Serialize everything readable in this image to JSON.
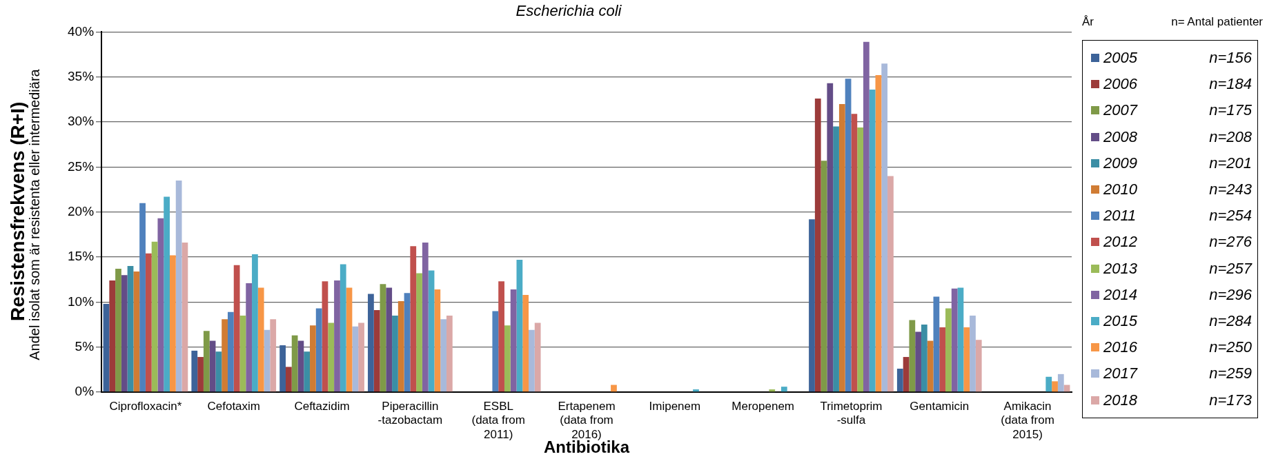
{
  "chart_data": {
    "type": "bar",
    "title": "Escherichia coli",
    "xlabel": "Antibiotika",
    "ylabel": "Resistensfrekvens (R+I)",
    "legend_title": "År",
    "legend": "right",
    "annotations": [
      "Andel isolat som är resistenta eller intermediära",
      "n= Antal patienter",
      "n=156",
      "n=184",
      "n=175",
      "n=208",
      "n=201",
      "n=243",
      "n=254",
      "n=276",
      "n=257",
      "n=296",
      "n=284",
      "n=250",
      "n=259",
      "n=173"
    ],
    "categories": [
      "Ciprofloxacin*",
      "Cefotaxim",
      "Ceftazidim",
      "Piperacillin\n-tazobactam",
      "ESBL\n(data from\n2011)",
      "Ertapenem\n(data from\n2016)",
      "Imipenem",
      "Meropenem",
      "Trimetoprim\n-sulfa",
      "Gentamicin",
      "Amikacin\n(data from\n2015)"
    ],
    "ylim": [
      0,
      40
    ],
    "yticks": [
      {
        "value": 0,
        "label": "0%"
      },
      {
        "value": 5,
        "label": "5%"
      },
      {
        "value": 10,
        "label": "10%"
      },
      {
        "value": 15,
        "label": "15%"
      },
      {
        "value": 20,
        "label": "20%"
      },
      {
        "value": 25,
        "label": "25%"
      },
      {
        "value": 30,
        "label": "30%"
      },
      {
        "value": 35,
        "label": "35%"
      },
      {
        "value": 40,
        "label": "40%"
      }
    ],
    "grid": "y",
    "series": [
      {
        "name": "2005",
        "color": "#3d6399",
        "values": [
          9.8,
          4.6,
          5.2,
          10.9,
          null,
          null,
          0,
          0,
          19.2,
          2.6,
          null
        ]
      },
      {
        "name": "2006",
        "color": "#9c3b3a",
        "values": [
          12.4,
          3.9,
          2.8,
          9.1,
          null,
          null,
          0,
          0,
          32.6,
          3.9,
          null
        ]
      },
      {
        "name": "2007",
        "color": "#7f9a48",
        "values": [
          13.7,
          6.8,
          6.3,
          12.0,
          null,
          null,
          0,
          0,
          25.7,
          8.0,
          null
        ]
      },
      {
        "name": "2008",
        "color": "#634d87",
        "values": [
          13.0,
          5.7,
          5.7,
          11.6,
          null,
          null,
          0,
          0,
          34.3,
          6.7,
          null
        ]
      },
      {
        "name": "2009",
        "color": "#3b8ea5",
        "values": [
          14.0,
          4.5,
          4.5,
          8.5,
          null,
          null,
          0,
          0,
          29.5,
          7.5,
          null
        ]
      },
      {
        "name": "2010",
        "color": "#d07c34",
        "values": [
          13.4,
          8.1,
          7.4,
          10.1,
          null,
          null,
          0,
          0,
          32.0,
          5.7,
          null
        ]
      },
      {
        "name": "2011",
        "color": "#4f81bd",
        "values": [
          21.0,
          8.9,
          9.3,
          11.0,
          9.0,
          null,
          0,
          0,
          34.8,
          10.6,
          null
        ]
      },
      {
        "name": "2012",
        "color": "#c0504d",
        "values": [
          15.4,
          14.1,
          12.3,
          16.2,
          12.3,
          null,
          0,
          0,
          30.9,
          7.2,
          null
        ]
      },
      {
        "name": "2013",
        "color": "#9bbb59",
        "values": [
          16.7,
          8.5,
          7.7,
          13.2,
          7.4,
          null,
          0,
          0.3,
          29.4,
          9.3,
          null
        ]
      },
      {
        "name": "2014",
        "color": "#8064a2",
        "values": [
          19.3,
          12.1,
          12.4,
          16.6,
          11.4,
          null,
          0,
          0,
          38.9,
          11.5,
          null
        ]
      },
      {
        "name": "2015",
        "color": "#4bacc6",
        "values": [
          21.7,
          15.3,
          14.2,
          13.5,
          14.7,
          null,
          0.3,
          0.6,
          33.6,
          11.6,
          1.7
        ]
      },
      {
        "name": "2016",
        "color": "#f79646",
        "values": [
          15.2,
          11.6,
          11.6,
          11.4,
          10.8,
          0.8,
          0,
          0,
          35.2,
          7.2,
          1.2
        ]
      },
      {
        "name": "2017",
        "color": "#a8b9da",
        "values": [
          23.5,
          6.9,
          7.3,
          8.1,
          6.9,
          0,
          0,
          0,
          36.5,
          8.5,
          2.0
        ]
      },
      {
        "name": "2018",
        "color": "#dba8a7",
        "values": [
          16.6,
          8.1,
          7.7,
          8.5,
          7.7,
          0,
          0,
          0,
          24.0,
          5.8,
          0.8
        ]
      }
    ]
  }
}
